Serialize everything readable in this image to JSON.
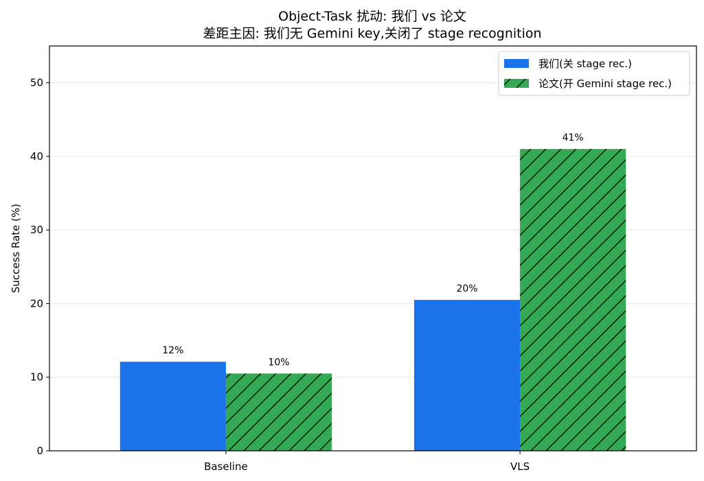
{
  "chart_data": {
    "type": "bar",
    "title": "Object-Task 扰动: 我们 vs 论文",
    "subtitle": "差距主因: 我们无 Gemini key,关闭了 stage recognition",
    "xlabel": "",
    "ylabel": "Success Rate (%)",
    "ylim": [
      0,
      55
    ],
    "yticks": [
      0,
      10,
      20,
      30,
      40,
      50
    ],
    "grid": true,
    "legend_position": "top-right",
    "categories": [
      "Baseline",
      "VLS"
    ],
    "series": [
      {
        "name": "我们(关 stage rec.)",
        "values": [
          12.1,
          20.5
        ],
        "labels": [
          "12%",
          "20%"
        ],
        "color": "#1a73e8",
        "hatch": false
      },
      {
        "name": "论文(开 Gemini stage rec.)",
        "values": [
          10.5,
          41.0
        ],
        "labels": [
          "10%",
          "41%"
        ],
        "color": "#34a853",
        "hatch": true
      }
    ]
  }
}
